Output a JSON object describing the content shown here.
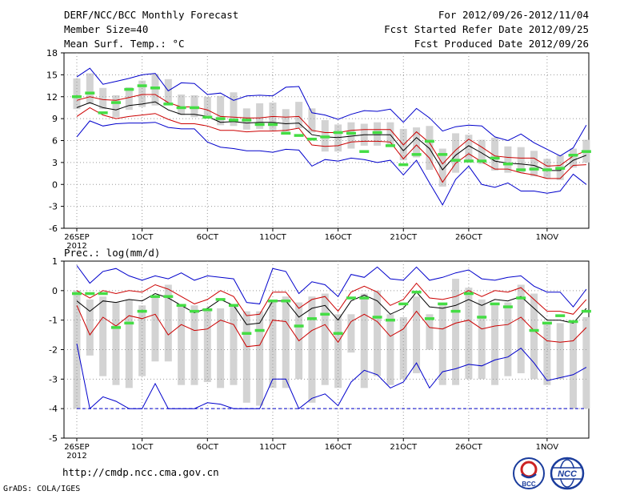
{
  "header": {
    "title": "DERF/NCC/BCC Monthly Forecast",
    "member_size": "Member Size=40",
    "variable": "Mean Surf. Temp.: °C",
    "period": "For 2012/09/26-2012/11/04",
    "started": "Fcst Started Refer Date 2012/09/25",
    "produced": "Fcst Produced Date 2012/09/26"
  },
  "footer": {
    "url": "http://cmdp.ncc.cma.gov.cn",
    "grads": "GrADS: COLA/IGES",
    "logo_bcc": "BCC",
    "logo_ncc": "NCC"
  },
  "colors": {
    "box": "#d3d3d3",
    "median": "#44dd44",
    "mean": "#000000",
    "inner": "#cc0000",
    "outer": "#0000cc",
    "grid": "#999999"
  },
  "chart_data": [
    {
      "type": "box",
      "panel": "temperature",
      "title": "Mean Surf. Temp.: °C",
      "ylabel": "°C",
      "ylim": [
        -6,
        18
      ],
      "yticks": [
        -6,
        -3,
        0,
        3,
        6,
        9,
        12,
        15,
        18
      ],
      "xlim": [
        1,
        40
      ],
      "xticks": [
        {
          "day": 1,
          "label": "26SEP",
          "sub": "2012"
        },
        {
          "day": 6,
          "label": "1OCT"
        },
        {
          "day": 11,
          "label": "6OCT"
        },
        {
          "day": 16,
          "label": "11OCT"
        },
        {
          "day": 21,
          "label": "16OCT"
        },
        {
          "day": 26,
          "label": "21OCT"
        },
        {
          "day": 31,
          "label": "26OCT"
        },
        {
          "day": 37,
          "label": "1NOV"
        }
      ],
      "days": [
        1,
        2,
        3,
        4,
        5,
        6,
        7,
        8,
        9,
        10,
        11,
        12,
        13,
        14,
        15,
        16,
        17,
        18,
        19,
        20,
        21,
        22,
        23,
        24,
        25,
        26,
        27,
        28,
        29,
        30,
        31,
        32,
        33,
        34,
        35,
        36,
        37,
        38,
        39,
        40
      ],
      "box_low": [
        10.3,
        11.0,
        10.3,
        9.2,
        10.2,
        10.6,
        10.8,
        11.0,
        9.5,
        9.2,
        9.0,
        8.1,
        8.0,
        7.5,
        7.6,
        7.4,
        7.2,
        7.7,
        7.1,
        4.5,
        4.5,
        4.9,
        5.3,
        5.3,
        5.3,
        3.3,
        3.7,
        2.0,
        -0.3,
        1.6,
        3.0,
        2.8,
        1.9,
        1.6,
        1.6,
        1.1,
        0.8,
        0.6,
        2.3,
        3.0
      ],
      "box_high": [
        14.5,
        15.2,
        13.2,
        12.2,
        13.3,
        14.2,
        15.1,
        14.4,
        12.3,
        12.2,
        12.0,
        12.1,
        12.6,
        10.4,
        11.1,
        11.2,
        10.3,
        11.3,
        10.4,
        8.8,
        8.2,
        8.5,
        8.3,
        8.5,
        8.5,
        7.6,
        7.8,
        8.0,
        4.9,
        7.0,
        6.8,
        6.1,
        6.4,
        5.2,
        5.1,
        4.6,
        3.5,
        4.0,
        4.9,
        6.1
      ],
      "median": [
        12.0,
        12.5,
        9.8,
        11.2,
        13.0,
        13.5,
        13.2,
        11.0,
        10.5,
        10.5,
        9.2,
        9.0,
        8.8,
        8.8,
        8.2,
        8.2,
        7.0,
        6.7,
        6.2,
        6.5,
        7.1,
        7.0,
        4.5,
        7.1,
        5.3,
        2.7,
        4.1,
        5.9,
        4.1,
        3.3,
        3.2,
        3.2,
        3.6,
        2.8,
        2.0,
        2.1,
        2.0,
        2.2,
        4.0,
        4.5
      ],
      "mean": [
        10.5,
        11.2,
        10.5,
        10.2,
        10.8,
        11.0,
        11.3,
        10.2,
        9.6,
        9.6,
        9.3,
        8.5,
        8.6,
        8.4,
        8.5,
        8.5,
        8.3,
        8.4,
        6.8,
        6.5,
        6.4,
        6.6,
        6.8,
        6.8,
        6.8,
        4.6,
        6.4,
        4.9,
        2.0,
        4.0,
        5.3,
        4.3,
        3.2,
        2.9,
        2.8,
        2.6,
        1.9,
        1.9,
        3.3,
        4.0
      ],
      "inner_hi": [
        11.5,
        12.0,
        11.6,
        11.5,
        11.9,
        12.3,
        12.3,
        11.2,
        10.6,
        10.6,
        10.2,
        9.3,
        9.2,
        9.1,
        9.1,
        9.3,
        9.2,
        9.3,
        7.4,
        7.1,
        7.1,
        7.4,
        7.5,
        7.5,
        7.5,
        5.4,
        7.2,
        5.7,
        2.8,
        4.7,
        6.2,
        5.1,
        3.9,
        3.7,
        3.6,
        3.6,
        2.5,
        2.6,
        3.9,
        4.6
      ],
      "inner_lo": [
        9.3,
        10.5,
        9.5,
        9.0,
        9.3,
        9.5,
        9.7,
        8.9,
        8.3,
        8.3,
        8.0,
        7.4,
        7.4,
        7.2,
        7.3,
        7.3,
        7.4,
        7.7,
        5.4,
        5.2,
        5.3,
        5.8,
        5.9,
        5.9,
        5.8,
        3.5,
        5.4,
        3.6,
        0.3,
        2.9,
        4.2,
        3.1,
        2.1,
        2.1,
        1.6,
        1.3,
        0.8,
        0.8,
        2.6,
        2.7
      ],
      "outer_hi": [
        14.7,
        15.9,
        13.7,
        14.1,
        14.5,
        15.0,
        15.2,
        12.8,
        13.9,
        13.8,
        12.3,
        12.5,
        11.5,
        12.1,
        12.2,
        12.1,
        13.3,
        13.4,
        9.8,
        9.5,
        8.9,
        9.6,
        10.1,
        10.0,
        10.3,
        8.5,
        10.4,
        9.1,
        7.3,
        7.9,
        8.1,
        8.0,
        6.5,
        6.0,
        6.9,
        5.7,
        4.8,
        3.9,
        5.0,
        8.1
      ],
      "outer_lo": [
        6.5,
        8.7,
        8.0,
        8.3,
        8.4,
        8.4,
        8.5,
        7.8,
        7.6,
        7.6,
        5.8,
        5.1,
        4.9,
        4.6,
        4.6,
        4.4,
        4.8,
        4.7,
        2.5,
        3.4,
        3.2,
        3.6,
        3.4,
        3.0,
        3.3,
        1.3,
        3.3,
        0.2,
        -2.8,
        0.7,
        2.5,
        0.0,
        -0.4,
        0.2,
        -0.9,
        -0.9,
        -1.2,
        -0.9,
        1.4,
        0.0
      ]
    },
    {
      "type": "box",
      "panel": "precipitation",
      "title": "Prec.: log(mm/d)",
      "ylabel": "log(mm/d)",
      "ylim": [
        -5,
        1
      ],
      "yticks": [
        -5,
        -4,
        -3,
        -2,
        -1,
        0,
        1
      ],
      "xlim": [
        1,
        40
      ],
      "xticks": [
        {
          "day": 1,
          "label": "26SEP",
          "sub": "2012"
        },
        {
          "day": 6,
          "label": "1OCT"
        },
        {
          "day": 11,
          "label": "6OCT"
        },
        {
          "day": 16,
          "label": "11OCT"
        },
        {
          "day": 21,
          "label": "16OCT"
        },
        {
          "day": 26,
          "label": "21OCT"
        },
        {
          "day": 31,
          "label": "26OCT"
        },
        {
          "day": 37,
          "label": "1NOV"
        }
      ],
      "floor": -4,
      "days": [
        1,
        2,
        3,
        4,
        5,
        6,
        7,
        8,
        9,
        10,
        11,
        12,
        13,
        14,
        15,
        16,
        17,
        18,
        19,
        20,
        21,
        22,
        23,
        24,
        25,
        26,
        27,
        28,
        29,
        30,
        31,
        32,
        33,
        34,
        35,
        36,
        37,
        38,
        39,
        40
      ],
      "box_low": [
        -4.0,
        -2.2,
        -2.9,
        -3.2,
        -3.3,
        -2.9,
        -2.4,
        -2.4,
        -3.2,
        -3.2,
        -3.1,
        -3.3,
        -3.2,
        -3.8,
        -3.9,
        -3.3,
        -3.3,
        -3.0,
        -3.8,
        -3.2,
        -3.3,
        -2.1,
        -3.3,
        -2.9,
        -3.2,
        -3.0,
        -2.8,
        -2.0,
        -3.2,
        -3.2,
        -3.0,
        -3.0,
        -3.2,
        -2.9,
        -2.8,
        -3.0,
        -3.2,
        -3.0,
        -4.0,
        -4.0
      ],
      "box_high": [
        0.0,
        -0.3,
        -0.2,
        -0.4,
        -0.3,
        -0.5,
        -0.2,
        0.2,
        -0.5,
        -0.5,
        -0.6,
        -0.6,
        -0.5,
        -0.7,
        -0.7,
        -0.4,
        -0.2,
        -0.4,
        -0.2,
        -0.1,
        -0.8,
        -0.8,
        -0.1,
        0.0,
        -0.8,
        -0.9,
        -0.2,
        -0.8,
        -0.5,
        0.4,
        0.1,
        -0.3,
        -0.5,
        -0.4,
        0.2,
        -0.1,
        -1.1,
        -1.1,
        -1.1,
        -0.9
      ],
      "median": [
        -0.1,
        -0.1,
        -0.1,
        -1.25,
        -1.1,
        -0.7,
        -0.2,
        -0.2,
        -0.5,
        -0.7,
        -0.65,
        -0.3,
        -0.5,
        -1.45,
        -1.35,
        -0.35,
        -0.35,
        -1.2,
        -0.95,
        -0.8,
        -1.45,
        -0.25,
        -0.25,
        -0.9,
        -1.0,
        -0.45,
        -0.05,
        -0.95,
        -0.45,
        -0.7,
        -0.1,
        -0.9,
        -0.45,
        -0.55,
        -0.25,
        -1.35,
        -1.1,
        -0.85,
        -1.05,
        -0.7
      ],
      "mean": [
        -0.35,
        -0.7,
        -0.35,
        -0.4,
        -0.3,
        -0.35,
        -0.1,
        -0.25,
        -0.5,
        -0.75,
        -0.6,
        -0.3,
        -0.5,
        -1.15,
        -1.1,
        -0.35,
        -0.35,
        -0.9,
        -0.6,
        -0.5,
        -1.0,
        -0.35,
        -0.15,
        -0.35,
        -0.8,
        -0.6,
        -0.05,
        -0.55,
        -0.6,
        -0.5,
        -0.3,
        -0.5,
        -0.3,
        -0.35,
        -0.2,
        -0.6,
        -1.0,
        -1.0,
        -1.1,
        -0.6
      ],
      "inner_hi": [
        0.0,
        -0.25,
        0.0,
        -0.1,
        0.0,
        -0.05,
        0.2,
        0.05,
        -0.2,
        -0.45,
        -0.3,
        0.0,
        -0.2,
        -0.85,
        -0.8,
        -0.05,
        -0.05,
        -0.6,
        -0.3,
        -0.2,
        -0.7,
        -0.05,
        0.15,
        -0.05,
        -0.5,
        -0.3,
        0.25,
        -0.25,
        -0.3,
        -0.2,
        0.0,
        -0.2,
        0.0,
        -0.05,
        0.1,
        -0.3,
        -0.7,
        -0.7,
        -0.8,
        -0.3
      ],
      "inner_lo": [
        -0.5,
        -1.5,
        -0.9,
        -1.2,
        -0.85,
        -0.95,
        -0.8,
        -1.5,
        -1.15,
        -1.35,
        -1.3,
        -1.0,
        -1.15,
        -1.9,
        -1.85,
        -1.0,
        -1.05,
        -1.7,
        -1.35,
        -1.15,
        -1.75,
        -1.05,
        -0.8,
        -1.05,
        -1.55,
        -1.3,
        -0.7,
        -1.25,
        -1.3,
        -1.1,
        -1.0,
        -1.3,
        -1.2,
        -1.15,
        -0.9,
        -1.35,
        -1.7,
        -1.75,
        -1.7,
        -1.25
      ],
      "outer_hi": [
        0.85,
        0.25,
        0.65,
        0.75,
        0.5,
        0.35,
        0.5,
        0.4,
        0.6,
        0.35,
        0.5,
        0.45,
        0.4,
        -0.4,
        -0.45,
        0.75,
        0.65,
        -0.1,
        0.3,
        0.2,
        -0.2,
        0.55,
        0.45,
        0.8,
        0.4,
        0.35,
        0.8,
        0.35,
        0.45,
        0.6,
        0.7,
        0.4,
        0.35,
        0.45,
        0.5,
        0.15,
        -0.05,
        -0.05,
        -0.55,
        0.05
      ],
      "outer_lo": [
        -1.8,
        -4.0,
        -3.6,
        -3.75,
        -4.0,
        -4.0,
        -3.15,
        -4.0,
        -4.0,
        -4.0,
        -3.8,
        -3.85,
        -4.0,
        -4.0,
        -4.0,
        -3.0,
        -3.0,
        -4.0,
        -3.65,
        -3.5,
        -3.9,
        -3.1,
        -2.7,
        -2.85,
        -3.3,
        -3.1,
        -2.45,
        -3.3,
        -2.75,
        -2.65,
        -2.5,
        -2.55,
        -2.35,
        -2.25,
        -1.95,
        -2.45,
        -3.05,
        -2.95,
        -2.85,
        -2.6
      ]
    }
  ]
}
